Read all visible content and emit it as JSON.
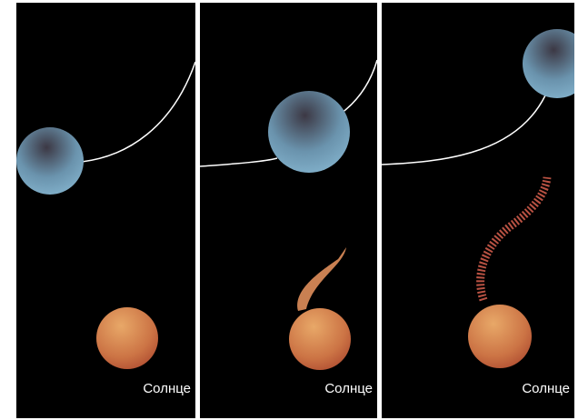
{
  "panels": [
    {
      "label": "Солнце"
    },
    {
      "label": "Солнце"
    },
    {
      "label": "Солнце"
    }
  ]
}
